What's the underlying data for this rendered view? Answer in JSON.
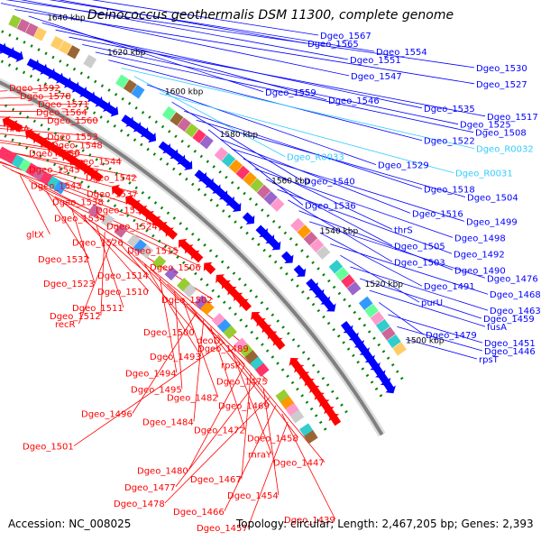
{
  "title": "Deinococcus geothermalis DSM 11300, complete genome",
  "footer": {
    "accession": "Accession: NC_008025",
    "topology": "Topology: circular; Length: 2,467,205 bp; Genes: 2,393"
  },
  "colors": {
    "backbone": "#808080",
    "forward_gene": "#0000ff",
    "reverse_gene": "#ff0000",
    "rna_gene": "#33ccff",
    "dotted_ring": "#008000"
  },
  "scale_labels": [
    "1700 kbp",
    "1680 kbp",
    "1660 kbp",
    "1640 kbp",
    "1620 kbp",
    "1600 kbp",
    "1580 kbp",
    "1560 kbp",
    "1540 kbp",
    "1520 kbp",
    "1500 kbp"
  ],
  "left_labels": [
    "Dgeo_1592",
    "Dgeo_1578",
    "Dgeo_1571",
    "Dgeo_1564",
    "Dgeo_1560",
    "nhaA",
    "Dgeo_1553",
    "Dgeo_1548",
    "Dgeo_1550",
    "Dgeo_1544",
    "Dgeo_1545",
    "Dgeo_1542",
    "Dgeo_1543",
    "Dgeo_1537",
    "Dgeo_1538",
    "Dgeo_1531",
    "Dgeo_1534",
    "Dgeo_1524",
    "gltX",
    "Dgeo_1526",
    "Dgeo_1515",
    "Dgeo_1532",
    "Dgeo_1506",
    "Dgeo_1514",
    "Dgeo_1523",
    "Dgeo_1510",
    "Dgeo_1502",
    "Dgeo_1511",
    "Dgeo_1512",
    "recR",
    "Dgeo_1500",
    "deoD",
    "Dgeo_1489",
    "Dgeo_1493",
    "rpsP",
    "Dgeo_1494",
    "Dgeo_1475",
    "Dgeo_1495",
    "Dgeo_1482",
    "Dgeo_1469",
    "Dgeo_1496",
    "Dgeo_1484",
    "Dgeo_1472",
    "Dgeo_1458",
    "Dgeo_1501",
    "mraY",
    "Dgeo_1447",
    "Dgeo_1480",
    "Dgeo_1467",
    "Dgeo_1477",
    "Dgeo_1454",
    "Dgeo_1478",
    "Dgeo_1466",
    "Dgeo_1439",
    "Dgeo_1457"
  ],
  "right_labels": [
    "Dgeo_1567",
    "Dgeo_1565",
    "Dgeo_1554",
    "Dgeo_1551",
    "Dgeo_1530",
    "Dgeo_1547",
    "Dgeo_1527",
    "Dgeo_1559",
    "Dgeo_1546",
    "Dgeo_1535",
    "Dgeo_1517",
    "Dgeo_1525",
    "Dgeo_1508",
    "Dgeo_1522",
    "Dgeo_R0032",
    "Dgeo_R0033",
    "Dgeo_1529",
    "Dgeo_R0031",
    "Dgeo_1540",
    "Dgeo_1518",
    "Dgeo_1504",
    "Dgeo_1536",
    "Dgeo_1516",
    "Dgeo_1499",
    "thrS",
    "Dgeo_1498",
    "Dgeo_1505",
    "Dgeo_1492",
    "Dgeo_1503",
    "Dgeo_1490",
    "Dgeo_1476",
    "Dgeo_1491",
    "Dgeo_1468",
    "purU",
    "Dgeo_1463",
    "Dgeo_1459",
    "fusA",
    "Dgeo_1479",
    "Dgeo_1451",
    "Dgeo_1446",
    "rpsT"
  ]
}
